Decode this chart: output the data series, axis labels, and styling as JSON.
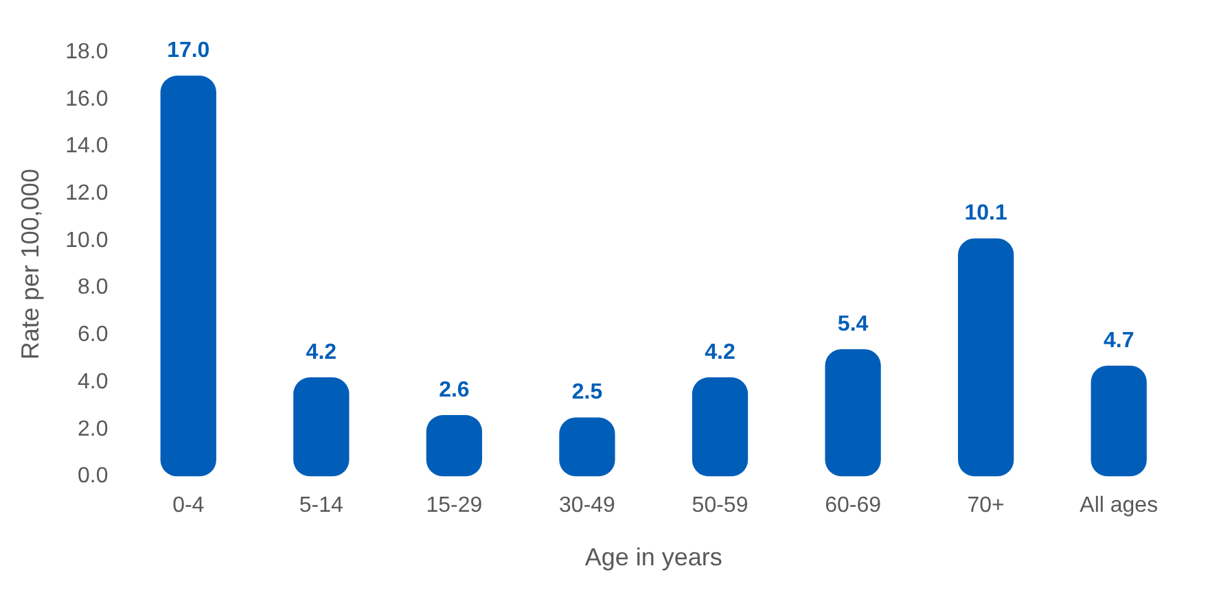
{
  "chart_data": {
    "type": "bar",
    "xlabel": "Age in years",
    "ylabel": "Rate per 100,000",
    "categories": [
      "0-4",
      "5-14",
      "15-29",
      "30-49",
      "50-59",
      "60-69",
      "70+",
      "All ages"
    ],
    "values": [
      17.0,
      4.2,
      2.6,
      2.5,
      4.2,
      5.4,
      10.1,
      4.7
    ],
    "value_labels": [
      "17.0",
      "4.2",
      "2.6",
      "2.5",
      "4.2",
      "5.4",
      "10.1",
      "4.7"
    ],
    "color": "#005eb8",
    "ylim": [
      0,
      18
    ],
    "yticks": [
      {
        "value": 0,
        "label": "0.0"
      },
      {
        "value": 2,
        "label": "2.0"
      },
      {
        "value": 4,
        "label": "4.0"
      },
      {
        "value": 6,
        "label": "6.0"
      },
      {
        "value": 8,
        "label": "8.0"
      },
      {
        "value": 10,
        "label": "10.0"
      },
      {
        "value": 12,
        "label": "12.0"
      },
      {
        "value": 14,
        "label": "14.0"
      },
      {
        "value": 16,
        "label": "16.0"
      },
      {
        "value": 18,
        "label": "18.0"
      }
    ],
    "grid": false,
    "legend": false
  }
}
